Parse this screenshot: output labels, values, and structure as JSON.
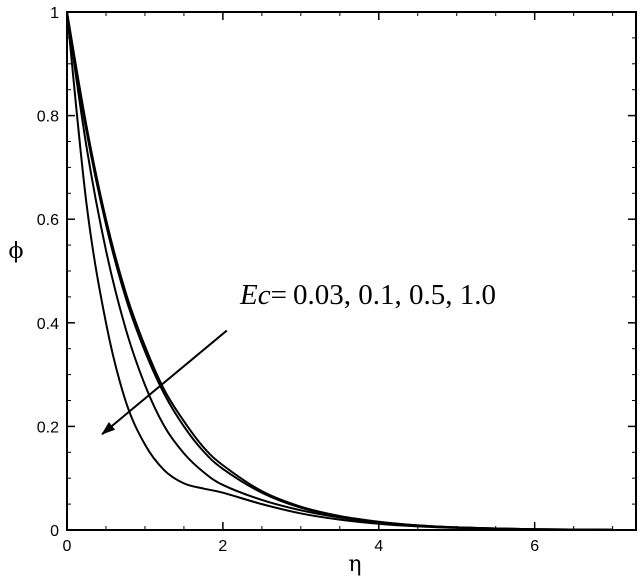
{
  "chart_data": {
    "type": "line",
    "title": "",
    "xlabel": "η",
    "ylabel": "ϕ",
    "xlim": [
      0,
      7.3
    ],
    "ylim": [
      0,
      1
    ],
    "xticks": [
      "0",
      "2",
      "4",
      "6"
    ],
    "yticks": [
      "0",
      "0.2",
      "0.4",
      "0.6",
      "0.8",
      "1"
    ],
    "grid": false,
    "annotation": {
      "param": "Ec",
      "equals": "=",
      "values": "0.03, 0.1, 0.5, 1.0"
    },
    "arrow": {
      "from": [
        2.05,
        0.385
      ],
      "to": [
        0.45,
        0.185
      ]
    },
    "x": [
      0,
      0.25,
      0.5,
      0.75,
      1.0,
      1.25,
      1.5,
      1.75,
      2.0,
      2.5,
      3.0,
      3.5,
      4.0,
      4.5,
      5.0,
      5.5,
      6.0,
      6.5,
      7.0
    ],
    "series": [
      {
        "values": [
          1.0,
          0.78,
          0.6,
          0.46,
          0.355,
          0.27,
          0.21,
          0.16,
          0.125,
          0.075,
          0.045,
          0.027,
          0.016,
          0.009,
          0.005,
          0.003,
          0.0015,
          0.0008,
          0.0004
        ]
      },
      {
        "values": [
          1.0,
          0.77,
          0.59,
          0.45,
          0.345,
          0.262,
          0.2,
          0.152,
          0.118,
          0.072,
          0.043,
          0.026,
          0.015,
          0.009,
          0.005,
          0.003,
          0.0015,
          0.0008,
          0.0004
        ]
      },
      {
        "values": [
          1.0,
          0.74,
          0.54,
          0.39,
          0.28,
          0.2,
          0.148,
          0.112,
          0.087,
          0.058,
          0.038,
          0.024,
          0.014,
          0.008,
          0.005,
          0.003,
          0.0015,
          0.0008,
          0.0004
        ]
      },
      {
        "values": [
          1.0,
          0.63,
          0.4,
          0.25,
          0.165,
          0.115,
          0.09,
          0.08,
          0.072,
          0.05,
          0.032,
          0.02,
          0.012,
          0.007,
          0.004,
          0.002,
          0.001,
          0.0005,
          0.0002
        ]
      }
    ]
  }
}
